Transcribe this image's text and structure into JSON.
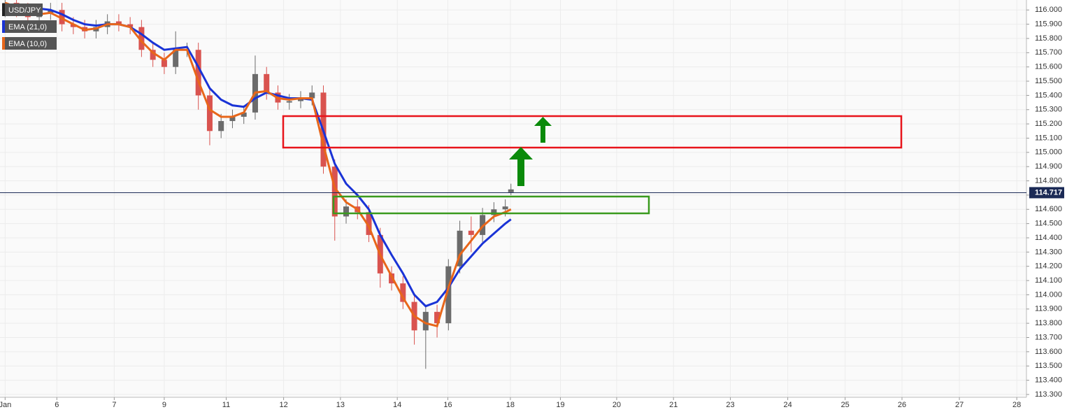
{
  "chart_data": {
    "type": "candlestick",
    "symbol": "USD/JPY",
    "x": [
      0,
      0.2,
      0.4,
      0.6,
      0.8,
      1.0,
      1.2,
      1.4,
      1.6,
      1.8,
      2.0,
      2.2,
      2.4,
      2.6,
      2.8,
      3.0,
      3.2,
      3.4,
      3.6,
      3.8,
      4.0,
      4.2,
      4.4,
      4.6,
      4.8,
      5.0,
      5.2,
      5.4,
      5.6,
      5.8,
      6.0,
      6.2,
      6.4,
      6.6,
      6.8,
      7.0,
      7.2,
      7.4,
      7.6,
      7.8,
      8.0,
      8.2,
      8.4,
      8.6,
      8.8,
      8.9
    ],
    "open": [
      116.0,
      116.05,
      116.0,
      115.95,
      115.98,
      116.0,
      115.9,
      115.88,
      115.85,
      115.88,
      115.92,
      115.9,
      115.88,
      115.72,
      115.65,
      115.6,
      115.72,
      115.72,
      115.4,
      115.15,
      115.22,
      115.25,
      115.28,
      115.55,
      115.42,
      115.35,
      115.36,
      115.38,
      115.42,
      114.9,
      114.55,
      114.62,
      114.58,
      114.42,
      114.15,
      114.08,
      113.95,
      113.75,
      113.88,
      113.8,
      114.2,
      114.45,
      114.42,
      114.56,
      114.6,
      114.72
    ],
    "high": [
      116.1,
      116.1,
      116.05,
      116.03,
      116.05,
      116.05,
      115.95,
      115.93,
      115.93,
      115.97,
      115.97,
      115.95,
      115.93,
      115.77,
      115.7,
      115.85,
      115.77,
      115.77,
      115.45,
      115.27,
      115.3,
      115.33,
      115.68,
      115.6,
      115.47,
      115.41,
      115.43,
      115.47,
      115.47,
      114.95,
      114.67,
      114.67,
      114.63,
      114.47,
      114.2,
      114.13,
      114.0,
      113.93,
      113.93,
      114.25,
      114.52,
      114.55,
      114.61,
      114.65,
      114.67,
      114.78
    ],
    "low": [
      115.95,
      115.95,
      115.9,
      115.9,
      115.93,
      115.85,
      115.83,
      115.8,
      115.8,
      115.83,
      115.85,
      115.83,
      115.67,
      115.6,
      115.55,
      115.55,
      115.67,
      115.3,
      115.05,
      115.1,
      115.17,
      115.2,
      115.23,
      115.37,
      115.3,
      115.3,
      115.31,
      115.33,
      114.85,
      114.38,
      114.5,
      114.53,
      114.37,
      114.05,
      114.03,
      113.9,
      113.65,
      113.48,
      113.7,
      113.75,
      114.15,
      114.3,
      114.37,
      114.51,
      114.55,
      114.7
    ],
    "close": [
      116.05,
      116.0,
      115.95,
      115.98,
      116.0,
      115.9,
      115.88,
      115.85,
      115.88,
      115.92,
      115.9,
      115.88,
      115.72,
      115.65,
      115.6,
      115.72,
      115.72,
      115.4,
      115.15,
      115.22,
      115.25,
      115.28,
      115.55,
      115.42,
      115.35,
      115.36,
      115.38,
      115.42,
      114.9,
      114.55,
      114.62,
      114.58,
      114.42,
      114.15,
      114.08,
      113.95,
      113.75,
      113.88,
      113.8,
      114.2,
      114.45,
      114.42,
      114.56,
      114.6,
      114.62,
      114.74
    ],
    "up_color": "#6b6b6b",
    "down_color": "#d9534f",
    "series": [
      {
        "name": "EMA (21,0)",
        "color": "#1a33d6",
        "values": [
          116.02,
          116.03,
          116.03,
          116.01,
          116.0,
          115.97,
          115.93,
          115.9,
          115.89,
          115.9,
          115.9,
          115.88,
          115.83,
          115.77,
          115.72,
          115.73,
          115.74,
          115.6,
          115.45,
          115.37,
          115.33,
          115.32,
          115.38,
          115.42,
          115.4,
          115.38,
          115.38,
          115.37,
          115.15,
          114.92,
          114.78,
          114.7,
          114.6,
          114.42,
          114.28,
          114.15,
          114.0,
          113.92,
          113.95,
          114.05,
          114.18,
          114.27,
          114.36,
          114.43,
          114.5,
          114.53
        ]
      },
      {
        "name": "EMA (10,0)",
        "color": "#e8661a",
        "values": [
          116.05,
          116.02,
          115.98,
          115.97,
          115.98,
          115.94,
          115.9,
          115.86,
          115.87,
          115.9,
          115.9,
          115.88,
          115.78,
          115.7,
          115.65,
          115.72,
          115.72,
          115.5,
          115.3,
          115.25,
          115.25,
          115.28,
          115.42,
          115.43,
          115.38,
          115.37,
          115.38,
          115.38,
          115.05,
          114.75,
          114.65,
          114.6,
          114.48,
          114.28,
          114.13,
          113.98,
          113.85,
          113.8,
          113.78,
          114.05,
          114.28,
          114.38,
          114.48,
          114.55,
          114.58,
          114.6
        ]
      }
    ],
    "last_price": {
      "value": 114.717,
      "label": "114.717"
    },
    "last_price_color": "#1b2a56",
    "xlim": [
      -0.09,
      17.97
    ],
    "xticks": [
      {
        "value": 0,
        "label": "Jan"
      },
      {
        "value": 0.91,
        "label": "6"
      },
      {
        "value": 1.92,
        "label": "7"
      },
      {
        "value": 2.8,
        "label": "9"
      },
      {
        "value": 3.89,
        "label": "11"
      },
      {
        "value": 4.9,
        "label": "12"
      },
      {
        "value": 5.9,
        "label": "13"
      },
      {
        "value": 6.9,
        "label": "14"
      },
      {
        "value": 7.79,
        "label": "16"
      },
      {
        "value": 8.89,
        "label": "18"
      },
      {
        "value": 9.77,
        "label": "19"
      },
      {
        "value": 10.76,
        "label": "20"
      },
      {
        "value": 11.76,
        "label": "21"
      },
      {
        "value": 12.76,
        "label": "23"
      },
      {
        "value": 13.77,
        "label": "24"
      },
      {
        "value": 14.78,
        "label": "25"
      },
      {
        "value": 15.78,
        "label": "26"
      },
      {
        "value": 16.79,
        "label": "27"
      },
      {
        "value": 17.8,
        "label": "28"
      }
    ],
    "ylim": [
      113.28,
      116.07
    ],
    "yticks": [
      {
        "value": 113.3,
        "label": "113.300"
      },
      {
        "value": 113.4,
        "label": "113.400"
      },
      {
        "value": 113.5,
        "label": "113.500"
      },
      {
        "value": 113.6,
        "label": "113.600"
      },
      {
        "value": 113.7,
        "label": "113.700"
      },
      {
        "value": 113.8,
        "label": "113.800"
      },
      {
        "value": 113.9,
        "label": "113.900"
      },
      {
        "value": 114.0,
        "label": "114.000"
      },
      {
        "value": 114.1,
        "label": "114.100"
      },
      {
        "value": 114.2,
        "label": "114.200"
      },
      {
        "value": 114.3,
        "label": "114.300"
      },
      {
        "value": 114.4,
        "label": "114.400"
      },
      {
        "value": 114.5,
        "label": "114.500"
      },
      {
        "value": 114.6,
        "label": "114.600"
      },
      {
        "value": 114.7,
        "label": "114.700"
      },
      {
        "value": 114.8,
        "label": "114.800"
      },
      {
        "value": 114.9,
        "label": "114.900"
      },
      {
        "value": 115.0,
        "label": "115.000"
      },
      {
        "value": 115.1,
        "label": "115.100"
      },
      {
        "value": 115.2,
        "label": "115.200"
      },
      {
        "value": 115.3,
        "label": "115.300"
      },
      {
        "value": 115.4,
        "label": "115.400"
      },
      {
        "value": 115.5,
        "label": "115.500"
      },
      {
        "value": 115.6,
        "label": "115.600"
      },
      {
        "value": 115.7,
        "label": "115.700"
      },
      {
        "value": 115.8,
        "label": "115.800"
      },
      {
        "value": 115.9,
        "label": "115.900"
      },
      {
        "value": 116.0,
        "label": "116.000"
      }
    ],
    "grid": true
  }
}
